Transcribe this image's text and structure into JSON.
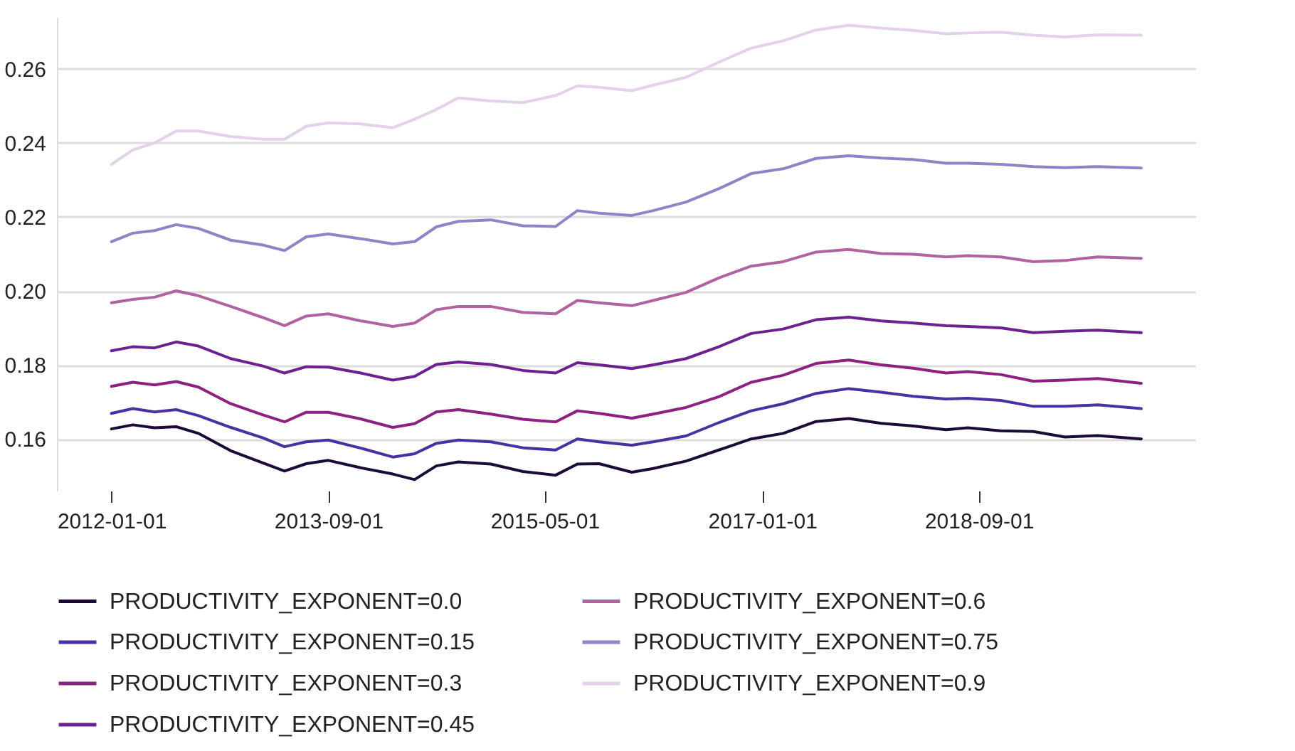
{
  "chart_data": {
    "type": "line",
    "x": [
      "2012-01",
      "2012-03",
      "2012-05",
      "2012-07",
      "2012-09",
      "2012-12",
      "2013-03",
      "2013-05",
      "2013-07",
      "2013-09",
      "2013-12",
      "2014-03",
      "2014-05",
      "2014-07",
      "2014-09",
      "2014-12",
      "2015-03",
      "2015-06",
      "2015-08",
      "2015-10",
      "2016-01",
      "2016-03",
      "2016-06",
      "2016-09",
      "2016-12",
      "2017-03",
      "2017-06",
      "2017-09",
      "2017-12",
      "2018-03",
      "2018-06",
      "2018-08",
      "2018-11",
      "2019-02",
      "2019-05",
      "2019-08",
      "2019-12"
    ],
    "series": [
      {
        "name": "PRODUCTIVITY_EXPONENT=0.0",
        "color": "#1c0b36",
        "values": [
          0.1627,
          0.1638,
          0.163,
          0.1633,
          0.1615,
          0.1568,
          0.1535,
          0.1513,
          0.1533,
          0.1542,
          0.1522,
          0.1505,
          0.149,
          0.1527,
          0.1538,
          0.1532,
          0.1512,
          0.1502,
          0.1532,
          0.1533,
          0.151,
          0.152,
          0.154,
          0.157,
          0.16,
          0.1615,
          0.1647,
          0.1655,
          0.1642,
          0.1635,
          0.1625,
          0.163,
          0.1622,
          0.162,
          0.1605,
          0.1609,
          0.16
        ]
      },
      {
        "name": "PRODUCTIVITY_EXPONENT=0.15",
        "color": "#4a30a0",
        "values": [
          0.1669,
          0.1682,
          0.1673,
          0.1679,
          0.1663,
          0.1631,
          0.1603,
          0.1579,
          0.1592,
          0.1597,
          0.1575,
          0.1551,
          0.156,
          0.1588,
          0.1597,
          0.1592,
          0.1576,
          0.157,
          0.16,
          0.1592,
          0.1583,
          0.1592,
          0.1608,
          0.1644,
          0.1676,
          0.1695,
          0.1723,
          0.1736,
          0.1726,
          0.1715,
          0.1708,
          0.171,
          0.1704,
          0.1688,
          0.1688,
          0.1692,
          0.1682
        ]
      },
      {
        "name": "PRODUCTIVITY_EXPONENT=0.3",
        "color": "#8c2180",
        "values": [
          0.1742,
          0.1753,
          0.1746,
          0.1755,
          0.174,
          0.1695,
          0.1665,
          0.1646,
          0.1672,
          0.1672,
          0.1654,
          0.1631,
          0.1641,
          0.1673,
          0.1679,
          0.1667,
          0.1653,
          0.1646,
          0.1676,
          0.1669,
          0.1656,
          0.1667,
          0.1685,
          0.1714,
          0.1753,
          0.1772,
          0.1804,
          0.1813,
          0.18,
          0.1791,
          0.1778,
          0.1782,
          0.1774,
          0.1756,
          0.1759,
          0.1763,
          0.175
        ]
      },
      {
        "name": "PRODUCTIVITY_EXPONENT=0.45",
        "color": "#6b2290",
        "values": [
          0.1838,
          0.1849,
          0.1846,
          0.1862,
          0.1851,
          0.1817,
          0.1797,
          0.1778,
          0.1795,
          0.1794,
          0.1778,
          0.1759,
          0.1769,
          0.1801,
          0.1808,
          0.1801,
          0.1785,
          0.1778,
          0.1806,
          0.18,
          0.179,
          0.18,
          0.1817,
          0.1849,
          0.1885,
          0.1897,
          0.1922,
          0.1929,
          0.1919,
          0.1913,
          0.1906,
          0.1904,
          0.19,
          0.1887,
          0.1891,
          0.1894,
          0.1887
        ]
      },
      {
        "name": "PRODUCTIVITY_EXPONENT=0.6",
        "color": "#b0639f",
        "values": [
          0.1968,
          0.1977,
          0.1983,
          0.2,
          0.1987,
          0.1958,
          0.1928,
          0.1906,
          0.1932,
          0.1938,
          0.1919,
          0.1904,
          0.1913,
          0.1949,
          0.1958,
          0.1958,
          0.1942,
          0.1938,
          0.1974,
          0.1968,
          0.196,
          0.1974,
          0.1996,
          0.2035,
          0.2067,
          0.2079,
          0.2105,
          0.2112,
          0.2101,
          0.2099,
          0.2092,
          0.2095,
          0.2092,
          0.2079,
          0.2082,
          0.2092,
          0.2088
        ]
      },
      {
        "name": "PRODUCTIVITY_EXPONENT=0.75",
        "color": "#8c86c6",
        "values": [
          0.2133,
          0.2156,
          0.2163,
          0.2179,
          0.2169,
          0.2137,
          0.2124,
          0.2109,
          0.2146,
          0.2154,
          0.2141,
          0.2127,
          0.2133,
          0.2173,
          0.2188,
          0.2192,
          0.2176,
          0.2174,
          0.2217,
          0.221,
          0.2204,
          0.2217,
          0.224,
          0.2276,
          0.2317,
          0.233,
          0.2358,
          0.2365,
          0.2359,
          0.2355,
          0.2345,
          0.2345,
          0.2342,
          0.2336,
          0.2333,
          0.2336,
          0.2332
        ]
      },
      {
        "name": "PRODUCTIVITY_EXPONENT=0.9",
        "color": "#e4d2ea",
        "values": [
          0.2342,
          0.2381,
          0.24,
          0.2432,
          0.2432,
          0.2417,
          0.241,
          0.241,
          0.2445,
          0.2454,
          0.2451,
          0.2441,
          0.2464,
          0.249,
          0.2522,
          0.2513,
          0.2509,
          0.2528,
          0.2554,
          0.255,
          0.2541,
          0.2556,
          0.2577,
          0.2618,
          0.2656,
          0.2676,
          0.2705,
          0.2718,
          0.271,
          0.2704,
          0.2695,
          0.2697,
          0.2699,
          0.2691,
          0.2686,
          0.2692,
          0.2691
        ]
      }
    ],
    "xlim": [
      "2011-08",
      "2020-05"
    ],
    "xticks": [
      "2012-01-01",
      "2013-09-01",
      "2015-05-01",
      "2017-01-01",
      "2018-09-01"
    ],
    "yticks": [
      {
        "value": 0.16,
        "label": "0.16"
      },
      {
        "value": 0.18,
        "label": "0.18"
      },
      {
        "value": 0.2,
        "label": "0.20"
      },
      {
        "value": 0.22,
        "label": "0.22"
      },
      {
        "value": 0.24,
        "label": "0.24"
      },
      {
        "value": 0.26,
        "label": "0.26"
      }
    ],
    "ylim": [
      0.146,
      0.274
    ],
    "grid": "y",
    "legend": "bottom",
    "line_style": "solid"
  }
}
